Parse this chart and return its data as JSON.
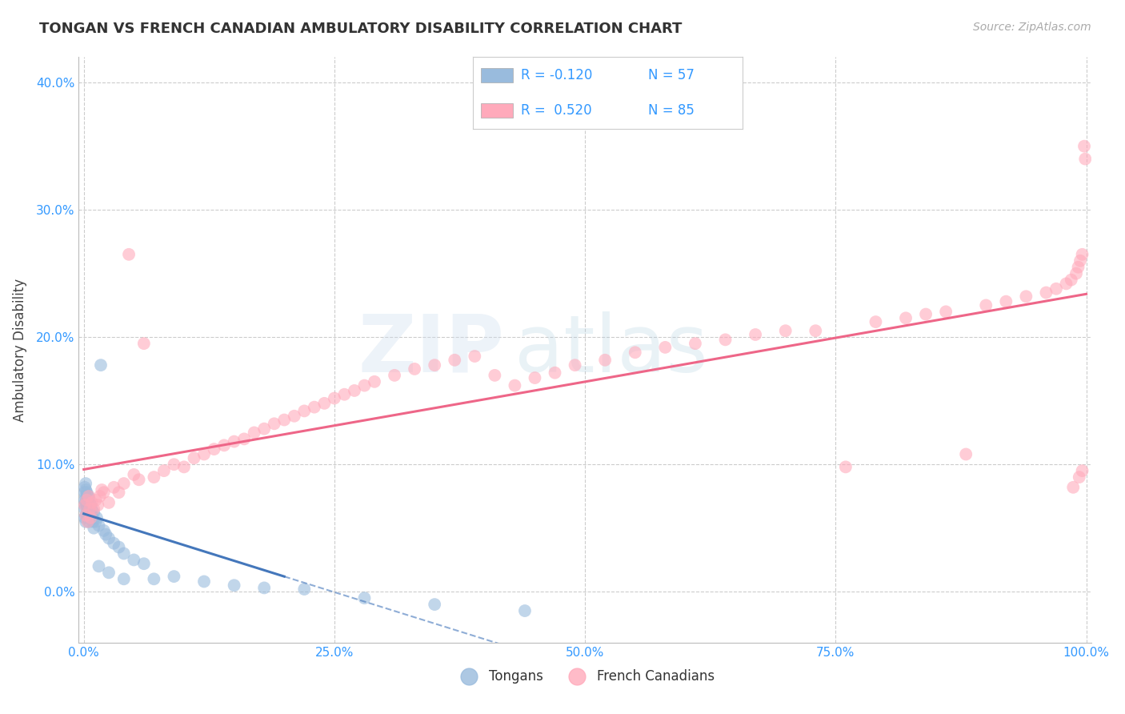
{
  "title": "TONGAN VS FRENCH CANADIAN AMBULATORY DISABILITY CORRELATION CHART",
  "source": "Source: ZipAtlas.com",
  "ylabel": "Ambulatory Disability",
  "xlim": [
    -0.005,
    1.005
  ],
  "ylim": [
    -0.04,
    0.42
  ],
  "xticks": [
    0.0,
    0.25,
    0.5,
    0.75,
    1.0
  ],
  "xtick_labels": [
    "0.0%",
    "25.0%",
    "50.0%",
    "75.0%",
    "100.0%"
  ],
  "yticks": [
    0.0,
    0.1,
    0.2,
    0.3,
    0.4
  ],
  "ytick_labels": [
    "0.0%",
    "10.0%",
    "20.0%",
    "30.0%",
    "40.0%"
  ],
  "tongan_R": -0.12,
  "tongan_N": 57,
  "french_R": 0.52,
  "french_N": 85,
  "tongan_color": "#99bbdd",
  "french_color": "#ffaabb",
  "tongan_line_color": "#4477bb",
  "french_line_color": "#ee6688",
  "watermark_line1": "ZIP",
  "watermark_line2": "atlas",
  "background_color": "#ffffff",
  "grid_color": "#cccccc",
  "tongan_x": [
    0.001,
    0.001,
    0.001,
    0.001,
    0.001,
    0.002,
    0.002,
    0.002,
    0.002,
    0.002,
    0.002,
    0.002,
    0.003,
    0.003,
    0.003,
    0.003,
    0.003,
    0.004,
    0.004,
    0.004,
    0.004,
    0.005,
    0.005,
    0.005,
    0.006,
    0.006,
    0.007,
    0.007,
    0.008,
    0.008,
    0.009,
    0.01,
    0.01,
    0.012,
    0.013,
    0.015,
    0.017,
    0.02,
    0.022,
    0.025,
    0.03,
    0.035,
    0.04,
    0.05,
    0.06,
    0.015,
    0.025,
    0.04,
    0.07,
    0.09,
    0.12,
    0.15,
    0.18,
    0.22,
    0.28,
    0.35,
    0.44
  ],
  "tongan_y": [
    0.065,
    0.072,
    0.078,
    0.058,
    0.082,
    0.068,
    0.075,
    0.06,
    0.085,
    0.07,
    0.055,
    0.08,
    0.072,
    0.065,
    0.078,
    0.06,
    0.068,
    0.07,
    0.062,
    0.076,
    0.058,
    0.074,
    0.066,
    0.055,
    0.07,
    0.063,
    0.068,
    0.058,
    0.06,
    0.065,
    0.055,
    0.062,
    0.05,
    0.055,
    0.058,
    0.052,
    0.178,
    0.048,
    0.045,
    0.042,
    0.038,
    0.035,
    0.03,
    0.025,
    0.022,
    0.02,
    0.015,
    0.01,
    0.01,
    0.012,
    0.008,
    0.005,
    0.003,
    0.002,
    -0.005,
    -0.01,
    -0.015
  ],
  "french_x": [
    0.001,
    0.002,
    0.003,
    0.004,
    0.005,
    0.006,
    0.007,
    0.008,
    0.01,
    0.012,
    0.014,
    0.016,
    0.018,
    0.02,
    0.025,
    0.03,
    0.035,
    0.04,
    0.045,
    0.05,
    0.055,
    0.06,
    0.07,
    0.08,
    0.09,
    0.1,
    0.11,
    0.12,
    0.13,
    0.14,
    0.15,
    0.16,
    0.17,
    0.18,
    0.19,
    0.2,
    0.21,
    0.22,
    0.23,
    0.24,
    0.25,
    0.26,
    0.27,
    0.28,
    0.29,
    0.31,
    0.33,
    0.35,
    0.37,
    0.39,
    0.41,
    0.43,
    0.45,
    0.47,
    0.49,
    0.52,
    0.55,
    0.58,
    0.61,
    0.64,
    0.67,
    0.7,
    0.73,
    0.76,
    0.79,
    0.82,
    0.84,
    0.86,
    0.88,
    0.9,
    0.92,
    0.94,
    0.96,
    0.97,
    0.98,
    0.985,
    0.99,
    0.992,
    0.994,
    0.996,
    0.998,
    0.999,
    0.996,
    0.993,
    0.987
  ],
  "french_y": [
    0.068,
    0.06,
    0.072,
    0.055,
    0.075,
    0.065,
    0.058,
    0.07,
    0.065,
    0.072,
    0.068,
    0.075,
    0.08,
    0.078,
    0.07,
    0.082,
    0.078,
    0.085,
    0.265,
    0.092,
    0.088,
    0.195,
    0.09,
    0.095,
    0.1,
    0.098,
    0.105,
    0.108,
    0.112,
    0.115,
    0.118,
    0.12,
    0.125,
    0.128,
    0.132,
    0.135,
    0.138,
    0.142,
    0.145,
    0.148,
    0.152,
    0.155,
    0.158,
    0.162,
    0.165,
    0.17,
    0.175,
    0.178,
    0.182,
    0.185,
    0.17,
    0.162,
    0.168,
    0.172,
    0.178,
    0.182,
    0.188,
    0.192,
    0.195,
    0.198,
    0.202,
    0.205,
    0.205,
    0.098,
    0.212,
    0.215,
    0.218,
    0.22,
    0.108,
    0.225,
    0.228,
    0.232,
    0.235,
    0.238,
    0.242,
    0.245,
    0.25,
    0.255,
    0.26,
    0.265,
    0.35,
    0.34,
    0.095,
    0.09,
    0.082
  ]
}
